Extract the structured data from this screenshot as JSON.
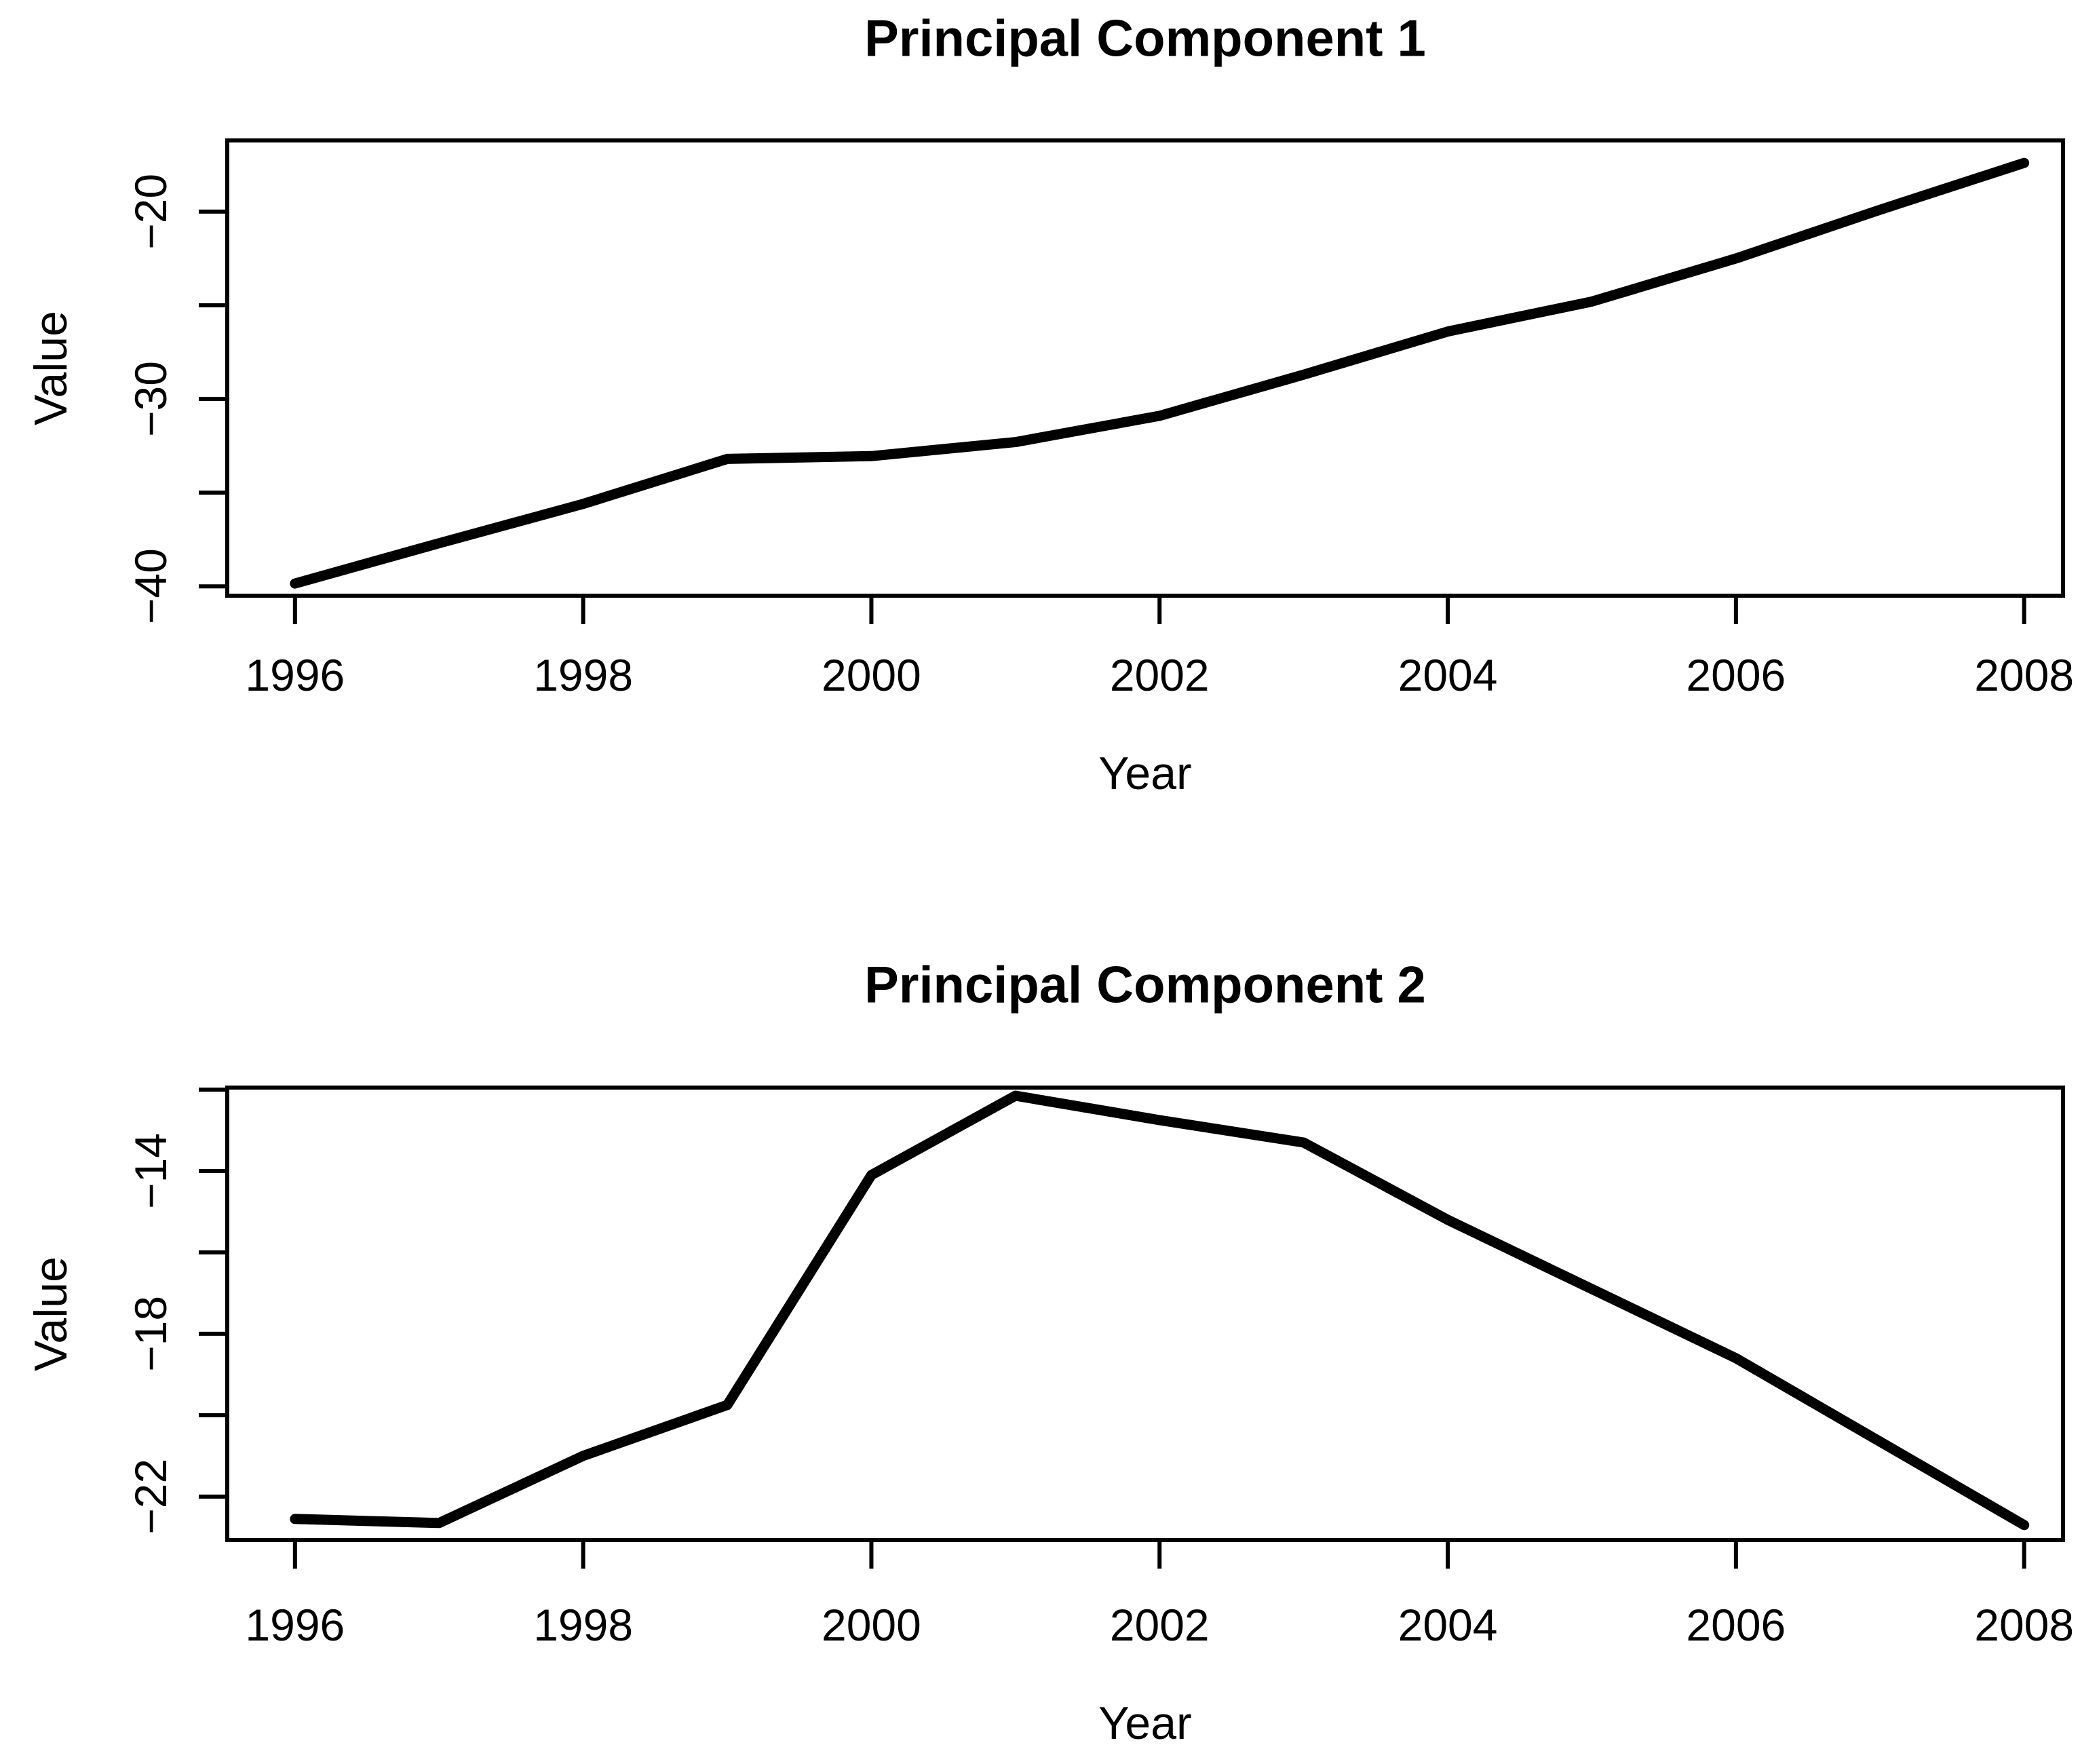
{
  "figure": {
    "background": "#ffffff",
    "line_color": "#000000",
    "axis_color": "#000000"
  },
  "chart_data": [
    {
      "type": "line",
      "title": "Principal Component 1",
      "xlabel": "Year",
      "ylabel": "Value",
      "x": [
        1996,
        1997,
        1998,
        1999,
        2000,
        2001,
        2002,
        2003,
        2004,
        2005,
        2006,
        2007,
        2008
      ],
      "values": [
        -39.85,
        -37.7,
        -35.6,
        -33.2,
        -33.05,
        -32.3,
        -30.9,
        -28.7,
        -26.4,
        -24.8,
        -22.5,
        -19.9,
        -17.4
      ],
      "xlim": [
        1995.53,
        2008.27
      ],
      "ylim": [
        -40.5,
        -16.2
      ],
      "grid": false,
      "legend": null,
      "x_ticks": {
        "values": [
          1996,
          1998,
          2000,
          2002,
          2004,
          2006,
          2008
        ],
        "labels": [
          "1996",
          "1998",
          "2000",
          "2002",
          "2004",
          "2006",
          "2008"
        ]
      },
      "y_ticks": {
        "values": [
          -40,
          -35,
          -30,
          -25,
          -20
        ],
        "labels": [
          "−40",
          "",
          "−30",
          "",
          "−20"
        ]
      }
    },
    {
      "type": "line",
      "title": "Principal Component 2",
      "xlabel": "Year",
      "ylabel": "Value",
      "x": [
        1996,
        1997,
        1998,
        1999,
        2000,
        2001,
        2002,
        2003,
        2004,
        2005,
        2006,
        2007,
        2008
      ],
      "values": [
        -22.55,
        -22.65,
        -21.0,
        -19.75,
        -14.1,
        -12.15,
        -12.75,
        -13.3,
        -15.2,
        -16.9,
        -18.6,
        -20.65,
        -22.7
      ],
      "xlim": [
        1995.53,
        2008.27
      ],
      "ylim": [
        -23.07,
        -11.95
      ],
      "grid": false,
      "legend": null,
      "x_ticks": {
        "values": [
          1996,
          1998,
          2000,
          2002,
          2004,
          2006,
          2008
        ],
        "labels": [
          "1996",
          "1998",
          "2000",
          "2002",
          "2004",
          "2006",
          "2008"
        ]
      },
      "y_ticks": {
        "values": [
          -22,
          -20,
          -18,
          -16,
          -14,
          -12
        ],
        "labels": [
          "−22",
          "",
          "−18",
          "",
          "−14",
          ""
        ]
      }
    }
  ]
}
